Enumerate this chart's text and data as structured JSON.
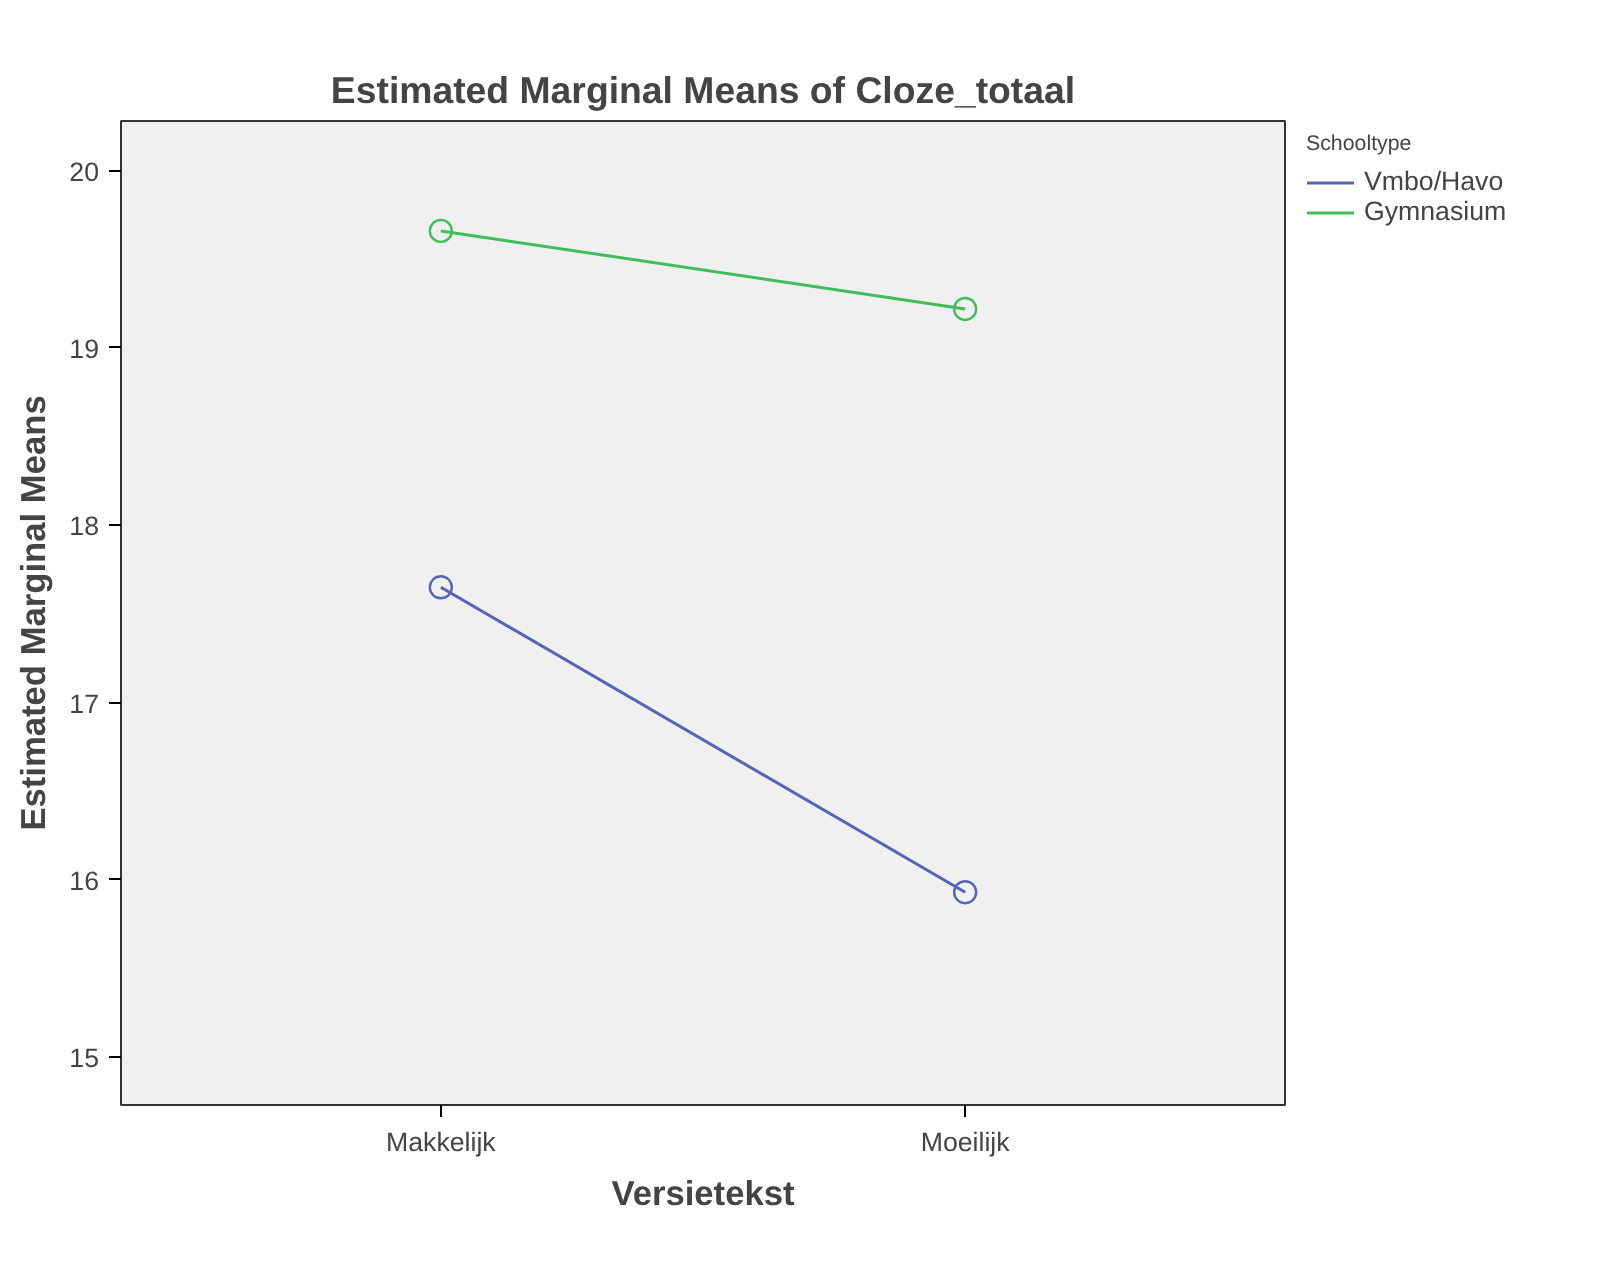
{
  "chart_data": {
    "type": "line",
    "title": "Estimated Marginal Means of Cloze_totaal",
    "xlabel": "Versietekst",
    "ylabel": "Estimated Marginal Means",
    "legend_title": "Schooltype",
    "categories": [
      "Makkelijk",
      "Moeilijk"
    ],
    "series": [
      {
        "name": "Vmbo/Havo",
        "color": "#5664b8",
        "values": [
          17.65,
          15.93
        ]
      },
      {
        "name": "Gymnasium",
        "color": "#3fbd5a",
        "values": [
          19.66,
          19.22
        ]
      }
    ],
    "ylim": [
      14.73,
      20.28
    ],
    "yticks": [
      15,
      16,
      17,
      18,
      19,
      20
    ],
    "grid": false,
    "legend": "top right",
    "marker": "circle",
    "line_style": "solid"
  }
}
